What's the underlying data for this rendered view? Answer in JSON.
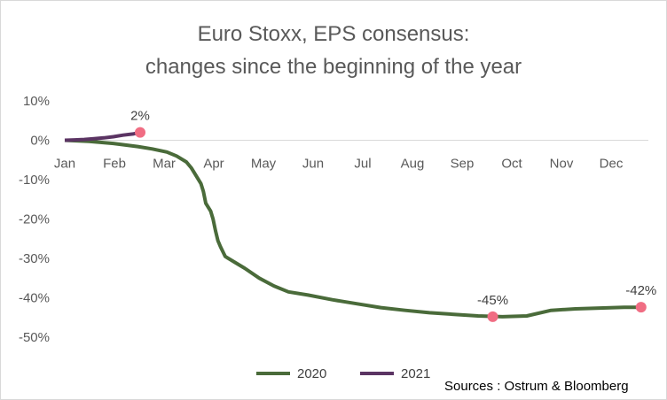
{
  "chart_data": {
    "type": "line",
    "title_lines": [
      "Euro Stoxx, EPS consensus:",
      "changes since the beginning of the year"
    ],
    "x_labels": [
      "Jan",
      "Feb",
      "Mar",
      "Apr",
      "May",
      "Jun",
      "Jul",
      "Aug",
      "Sep",
      "Oct",
      "Nov",
      "Dec"
    ],
    "y_ticks": [
      10,
      0,
      -10,
      -20,
      -30,
      -40,
      -50
    ],
    "y_tick_labels": [
      "10%",
      "0%",
      "-10%",
      "-20%",
      "-30%",
      "-40%",
      "-50%"
    ],
    "ylim": [
      -50,
      10
    ],
    "xlim": [
      0,
      12
    ],
    "grid": false,
    "legend_position": "bottom",
    "series": [
      {
        "name": "2020",
        "color": "#4a6b3a",
        "points": [
          [
            0,
            0
          ],
          [
            0.5,
            -0.3
          ],
          [
            1.0,
            -0.8
          ],
          [
            1.5,
            -1.6
          ],
          [
            1.8,
            -2.2
          ],
          [
            2.1,
            -3.0
          ],
          [
            2.3,
            -4.0
          ],
          [
            2.5,
            -5.5
          ],
          [
            2.6,
            -7.0
          ],
          [
            2.7,
            -9.0
          ],
          [
            2.8,
            -11.0
          ],
          [
            2.85,
            -13.0
          ],
          [
            2.9,
            -16.0
          ],
          [
            3.0,
            -18.0
          ],
          [
            3.05,
            -20.0
          ],
          [
            3.1,
            -23.0
          ],
          [
            3.15,
            -25.5
          ],
          [
            3.2,
            -27.0
          ],
          [
            3.3,
            -29.5
          ],
          [
            3.5,
            -31.0
          ],
          [
            3.7,
            -32.5
          ],
          [
            4.0,
            -35.0
          ],
          [
            4.3,
            -37.0
          ],
          [
            4.6,
            -38.5
          ],
          [
            5.0,
            -39.3
          ],
          [
            5.5,
            -40.5
          ],
          [
            6.0,
            -41.5
          ],
          [
            6.5,
            -42.5
          ],
          [
            7.0,
            -43.2
          ],
          [
            7.5,
            -43.8
          ],
          [
            8.0,
            -44.2
          ],
          [
            8.5,
            -44.6
          ],
          [
            9.0,
            -44.8
          ],
          [
            9.5,
            -44.6
          ],
          [
            10.0,
            -43.2
          ],
          [
            10.5,
            -42.8
          ],
          [
            11.0,
            -42.6
          ],
          [
            11.5,
            -42.4
          ],
          [
            11.85,
            -42.4
          ]
        ]
      },
      {
        "name": "2021",
        "color": "#5b3463",
        "points": [
          [
            0,
            0
          ],
          [
            0.2,
            0.1
          ],
          [
            0.4,
            0.2
          ],
          [
            0.6,
            0.4
          ],
          [
            0.8,
            0.6
          ],
          [
            1.0,
            0.9
          ],
          [
            1.2,
            1.3
          ],
          [
            1.4,
            1.6
          ],
          [
            1.55,
            2.0
          ]
        ]
      }
    ],
    "data_labels": [
      {
        "text": "2%",
        "x": 1.55,
        "y": 2.0,
        "series": "2021"
      },
      {
        "text": "-45%",
        "x": 8.8,
        "y": -44.8,
        "series": "2020"
      },
      {
        "text": "-42%",
        "x": 11.85,
        "y": -42.4,
        "series": "2020"
      }
    ],
    "marker_color": "#f06d83"
  },
  "source_text": "Sources : Ostrum & Bloomberg"
}
